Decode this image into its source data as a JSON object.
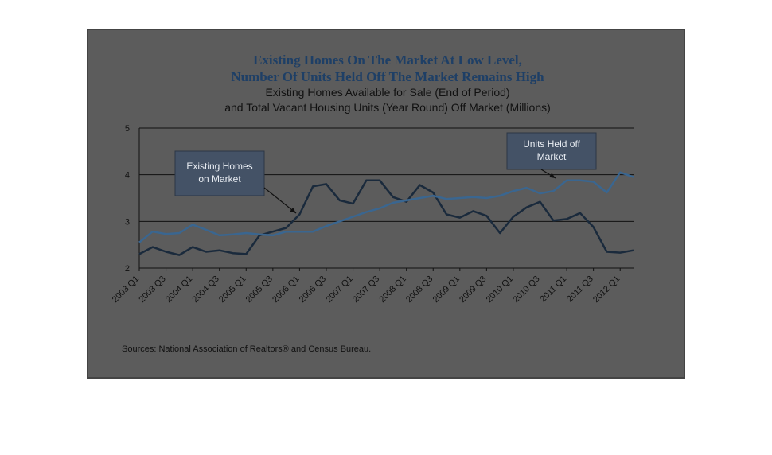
{
  "chart_data": {
    "type": "line",
    "title_lines": [
      "Existing Homes On The Market At Low Level,",
      "Number Of Units Held Off The Market Remains High"
    ],
    "subtitle_lines": [
      "Existing Homes Available for Sale (End of Period)",
      "and Total Vacant Housing Units (Year Round) Off Market (Millions)"
    ],
    "x_labels": [
      "2003 Q1",
      "2003 Q3",
      "2004 Q1",
      "2004 Q3",
      "2005 Q1",
      "2005 Q3",
      "2006 Q1",
      "2006 Q3",
      "2007 Q1",
      "2007 Q3",
      "2008 Q1",
      "2008 Q3",
      "2009 Q1",
      "2009 Q3",
      "2010 Q1",
      "2010 Q3",
      "2011 Q1",
      "2011 Q3",
      "2012 Q1"
    ],
    "quarters": [
      "2003 Q1",
      "2003 Q2",
      "2003 Q3",
      "2003 Q4",
      "2004 Q1",
      "2004 Q2",
      "2004 Q3",
      "2004 Q4",
      "2005 Q1",
      "2005 Q2",
      "2005 Q3",
      "2005 Q4",
      "2006 Q1",
      "2006 Q2",
      "2006 Q3",
      "2006 Q4",
      "2007 Q1",
      "2007 Q2",
      "2007 Q3",
      "2007 Q4",
      "2008 Q1",
      "2008 Q2",
      "2008 Q3",
      "2008 Q4",
      "2009 Q1",
      "2009 Q2",
      "2009 Q3",
      "2009 Q4",
      "2010 Q1",
      "2010 Q2",
      "2010 Q3",
      "2010 Q4",
      "2011 Q1",
      "2011 Q2",
      "2011 Q3",
      "2011 Q4",
      "2012 Q1",
      "2012 Q2"
    ],
    "ylim": [
      2,
      5
    ],
    "yticks": [
      2,
      3,
      4,
      5
    ],
    "series": [
      {
        "key": "existing",
        "color": "#1a2a3c",
        "values": [
          2.3,
          2.45,
          2.35,
          2.28,
          2.45,
          2.35,
          2.38,
          2.32,
          2.3,
          2.7,
          2.78,
          2.86,
          3.15,
          3.75,
          3.8,
          3.45,
          3.38,
          3.88,
          3.88,
          3.52,
          3.42,
          3.78,
          3.62,
          3.15,
          3.08,
          3.22,
          3.12,
          2.75,
          3.1,
          3.3,
          3.42,
          3.02,
          3.05,
          3.18,
          2.88,
          2.35,
          2.33,
          2.38
        ]
      },
      {
        "key": "held_off",
        "color": "#3a6690",
        "values": [
          2.55,
          2.78,
          2.73,
          2.75,
          2.93,
          2.82,
          2.7,
          2.72,
          2.75,
          2.72,
          2.7,
          2.78,
          2.78,
          2.78,
          2.9,
          3.0,
          3.1,
          3.2,
          3.28,
          3.4,
          3.45,
          3.5,
          3.55,
          3.48,
          3.5,
          3.52,
          3.5,
          3.55,
          3.65,
          3.72,
          3.6,
          3.65,
          3.88,
          3.88,
          3.85,
          3.62,
          4.05,
          3.95
        ]
      }
    ],
    "callouts": [
      {
        "lines": [
          "Existing Homes",
          "on Market"
        ]
      },
      {
        "lines": [
          "Units Held off",
          "Market"
        ]
      }
    ],
    "source": "Sources: National Association of Realtors® and Census Bureau."
  }
}
